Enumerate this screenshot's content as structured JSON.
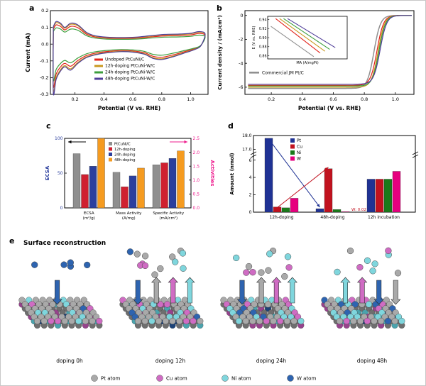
{
  "figure": {
    "background": "#ffffff"
  },
  "panels": {
    "a": {
      "label": "a"
    },
    "b": {
      "label": "b"
    },
    "c": {
      "label": "c"
    },
    "d": {
      "label": "d"
    },
    "e": {
      "label": "e"
    }
  },
  "chart_data": [
    {
      "id": "a",
      "type": "line",
      "kind": "cv",
      "xlabel": "Potential (V vs. RHE)",
      "ylabel": "Current (mA)",
      "xlim": [
        0.03,
        1.12
      ],
      "ylim": [
        -0.3,
        0.2
      ],
      "xticks": [
        0.2,
        0.4,
        0.6,
        0.8,
        1.0
      ],
      "yticks": [
        -0.3,
        -0.2,
        -0.1,
        0.0,
        0.1,
        0.2
      ],
      "series": [
        {
          "name": "Undoped PtCuNi/C",
          "color": "#e2231a",
          "scale": 0.85
        },
        {
          "name": "12h-doping PtCuNi-W/C",
          "color": "#c9981f",
          "scale": 0.95
        },
        {
          "name": "24h-doping PtCuNi-W/C",
          "color": "#3c9e3c",
          "scale": 0.72
        },
        {
          "name": "48h-doping PtCuNi-W/C",
          "color": "#4f3d99",
          "scale": 1.0
        }
      ],
      "base_loop": [
        [
          0.05,
          0.105
        ],
        [
          0.07,
          0.135
        ],
        [
          0.1,
          0.125
        ],
        [
          0.13,
          0.1
        ],
        [
          0.17,
          0.125
        ],
        [
          0.22,
          0.115
        ],
        [
          0.28,
          0.07
        ],
        [
          0.34,
          0.05
        ],
        [
          0.42,
          0.042
        ],
        [
          0.52,
          0.04
        ],
        [
          0.62,
          0.042
        ],
        [
          0.72,
          0.05
        ],
        [
          0.82,
          0.058
        ],
        [
          0.92,
          0.06
        ],
        [
          1.0,
          0.065
        ],
        [
          1.06,
          0.075
        ],
        [
          1.1,
          0.06
        ],
        [
          1.07,
          -0.01
        ],
        [
          1.02,
          -0.035
        ],
        [
          0.95,
          -0.055
        ],
        [
          0.88,
          -0.075
        ],
        [
          0.8,
          -0.092
        ],
        [
          0.74,
          -0.085
        ],
        [
          0.68,
          -0.06
        ],
        [
          0.6,
          -0.048
        ],
        [
          0.52,
          -0.045
        ],
        [
          0.44,
          -0.05
        ],
        [
          0.36,
          -0.06
        ],
        [
          0.28,
          -0.08
        ],
        [
          0.22,
          -0.115
        ],
        [
          0.17,
          -0.155
        ],
        [
          0.13,
          -0.135
        ],
        [
          0.1,
          -0.16
        ],
        [
          0.07,
          -0.21
        ],
        [
          0.05,
          -0.29
        ]
      ]
    },
    {
      "id": "b",
      "type": "line",
      "kind": "orr",
      "xlabel": "Potential (V vs. RHE)",
      "ylabel": "Current density / (mA/cm²)",
      "xlim": [
        0.03,
        1.12
      ],
      "ylim": [
        -6.6,
        0.4
      ],
      "xticks": [
        0.2,
        0.4,
        0.6,
        0.8,
        1.0
      ],
      "yticks": [
        0,
        -2,
        -4,
        -6
      ],
      "legend_label": "Commercial JM Pt/C",
      "series": [
        {
          "name": "Commercial JM Pt/C",
          "color": "#909090",
          "halfwave": 0.862,
          "ilim": -6.1
        },
        {
          "name": "Undoped PtCuNi/C",
          "color": "#e2231a",
          "halfwave": 0.882,
          "ilim": -5.85
        },
        {
          "name": "12h-doping PtCuNi-W/C",
          "color": "#c9981f",
          "halfwave": 0.889,
          "ilim": -6.0
        },
        {
          "name": "24h-doping PtCuNi-W/C",
          "color": "#3c9e3c",
          "halfwave": 0.895,
          "ilim": -5.9
        },
        {
          "name": "48h-doping PtCuNi-W/C",
          "color": "#4f3d99",
          "halfwave": 0.902,
          "ilim": -5.75
        }
      ],
      "inset": {
        "xlabel": "MA (A/mgPt)",
        "ylabel": "E (V vs. RHE)",
        "ylim": [
          0.853,
          0.947
        ],
        "yticks": [
          0.86,
          0.88,
          0.9,
          0.92,
          0.94
        ],
        "lines": [
          {
            "color": "#909090",
            "pts": [
              [
                0.04,
                0.925
              ],
              [
                0.58,
                0.858
              ]
            ]
          },
          {
            "color": "#e2231a",
            "pts": [
              [
                0.1,
                0.942
              ],
              [
                0.66,
                0.866
              ]
            ]
          },
          {
            "color": "#c9981f",
            "pts": [
              [
                0.15,
                0.942
              ],
              [
                0.72,
                0.87
              ]
            ]
          },
          {
            "color": "#3c9e3c",
            "pts": [
              [
                0.2,
                0.942
              ],
              [
                0.78,
                0.874
              ]
            ]
          },
          {
            "color": "#4f3d99",
            "pts": [
              [
                0.25,
                0.942
              ],
              [
                0.85,
                0.878
              ]
            ]
          }
        ]
      }
    },
    {
      "id": "c",
      "type": "bar",
      "kind": "dualbar",
      "left_axis": {
        "label": "ECSA",
        "color": "#2b3f9e",
        "range": [
          0,
          100
        ],
        "ticks": [
          0,
          50,
          100
        ]
      },
      "right_axis": {
        "label": "Activities",
        "color": "#ee1d8e",
        "range": [
          0,
          2.5
        ],
        "ticks": [
          0.0,
          0.5,
          1.0,
          1.5,
          2.0,
          2.5
        ]
      },
      "groups": [
        {
          "lines": [
            "ECSA",
            "(m²/g)"
          ],
          "axis": "left"
        },
        {
          "lines": [
            "Mass Activity",
            "(A/mg)"
          ],
          "axis": "right"
        },
        {
          "lines": [
            "Specific Activity",
            "(mA/cm²)"
          ],
          "axis": "right"
        }
      ],
      "series": [
        {
          "name": "PtCuNi/C",
          "color": "#8f8f8f",
          "values": [
            78,
            1.28,
            1.55
          ]
        },
        {
          "name": "12h-doping",
          "color": "#cf2030",
          "values": [
            48,
            0.76,
            1.62
          ]
        },
        {
          "name": "24h-doping",
          "color": "#2b3f9e",
          "values": [
            60,
            1.15,
            1.78
          ]
        },
        {
          "name": "48h-doping",
          "color": "#f59b20",
          "values": [
            100,
            1.43,
            2.05
          ]
        }
      ]
    },
    {
      "id": "d",
      "type": "bar",
      "kind": "brokenbar",
      "ylabel": "Amount (nmol)",
      "groups": [
        "12h-doping",
        "48h-doping",
        "12h incubation"
      ],
      "series": [
        {
          "name": "Pt",
          "color": "#1f3294",
          "values": [
            17.8,
            0.4,
            3.8
          ]
        },
        {
          "name": "Cu",
          "color": "#c1121f",
          "values": [
            0.6,
            5.0,
            3.8
          ]
        },
        {
          "name": "Ni",
          "color": "#1a7a1a",
          "values": [
            0.5,
            0.3,
            3.8
          ]
        },
        {
          "name": "W",
          "color": "#e6007e",
          "values": [
            1.6,
            0.02,
            4.7
          ]
        }
      ],
      "axis_break": {
        "lower_range": [
          0,
          6
        ],
        "lower_ticks": [
          0,
          2,
          4,
          6
        ],
        "upper_range": [
          17,
          18
        ],
        "upper_ticks": [
          17,
          18
        ]
      },
      "annotation": {
        "text": "W: 0.02",
        "color": "#c1121f"
      },
      "arrows": [
        {
          "color": "#1f3294",
          "from_group": 0,
          "from_series": 0,
          "to_group": 1,
          "to_series": 0
        },
        {
          "color": "#c1121f",
          "from_group": 0,
          "from_series": 1,
          "to_group": 1,
          "to_series": 1
        }
      ]
    }
  ],
  "schematic": {
    "title": "Surface reconstruction",
    "atom_colors": {
      "Pt": "#a9a9a9",
      "Cu": "#cf6cc3",
      "Ni": "#7fd6dd",
      "W": "#2e64b0"
    },
    "atom_colors_dark": {
      "Pt": "#6e6e6e",
      "Cu": "#96438c",
      "Ni": "#4aa3ad",
      "W": "#1c4277"
    },
    "legend": [
      {
        "key": "Pt",
        "label": "Pt atom"
      },
      {
        "key": "Cu",
        "label": "Cu atom"
      },
      {
        "key": "Ni",
        "label": "Ni atom"
      },
      {
        "key": "W",
        "label": "W atom"
      }
    ],
    "slabs": [
      {
        "label": "doping 0h",
        "seed": 11,
        "pit": 1,
        "mix": {
          "Pt": 0.66,
          "Cu": 0.16,
          "Ni": 0.16,
          "W": 0.02
        },
        "floats": {
          "W": 5
        },
        "arrows": [
          {
            "dir": "down",
            "key": "W",
            "x": 0.42
          }
        ]
      },
      {
        "label": "doping 12h",
        "seed": 22,
        "pit": 2,
        "mix": {
          "Pt": 0.6,
          "Cu": 0.17,
          "Ni": 0.17,
          "W": 0.06
        },
        "floats": {
          "Pt": 6,
          "Cu": 3,
          "Ni": 3,
          "W": 1
        },
        "arrows": [
          {
            "dir": "down",
            "key": "W",
            "x": 0.18
          },
          {
            "dir": "up",
            "key": "Pt",
            "x": 0.4
          },
          {
            "dir": "up",
            "key": "Cu",
            "x": 0.6
          },
          {
            "dir": "up",
            "key": "Ni",
            "x": 0.8
          }
        ]
      },
      {
        "label": "doping 24h",
        "seed": 33,
        "pit": 2,
        "mix": {
          "Pt": 0.58,
          "Cu": 0.16,
          "Ni": 0.18,
          "W": 0.08
        },
        "floats": {
          "Pt": 5,
          "Cu": 3,
          "Ni": 3
        },
        "arrows": [
          {
            "dir": "down",
            "key": "W",
            "x": 0.22
          },
          {
            "dir": "up",
            "key": "Pt",
            "x": 0.45
          },
          {
            "dir": "up",
            "key": "Cu",
            "x": 0.63
          },
          {
            "dir": "up",
            "key": "Ni",
            "x": 0.82
          }
        ]
      },
      {
        "label": "doping 48h",
        "seed": 44,
        "pit": 2,
        "mix": {
          "Pt": 0.56,
          "Cu": 0.15,
          "Ni": 0.2,
          "W": 0.09
        },
        "floats": {
          "Ni": 5,
          "Pt": 2,
          "Cu": 2
        },
        "arrows": [
          {
            "dir": "up",
            "key": "Ni",
            "x": 0.25
          },
          {
            "dir": "up",
            "key": "Cu",
            "x": 0.45
          },
          {
            "dir": "down",
            "key": "W",
            "x": 0.65
          },
          {
            "dir": "down",
            "key": "Pt",
            "x": 0.85
          }
        ]
      }
    ]
  }
}
